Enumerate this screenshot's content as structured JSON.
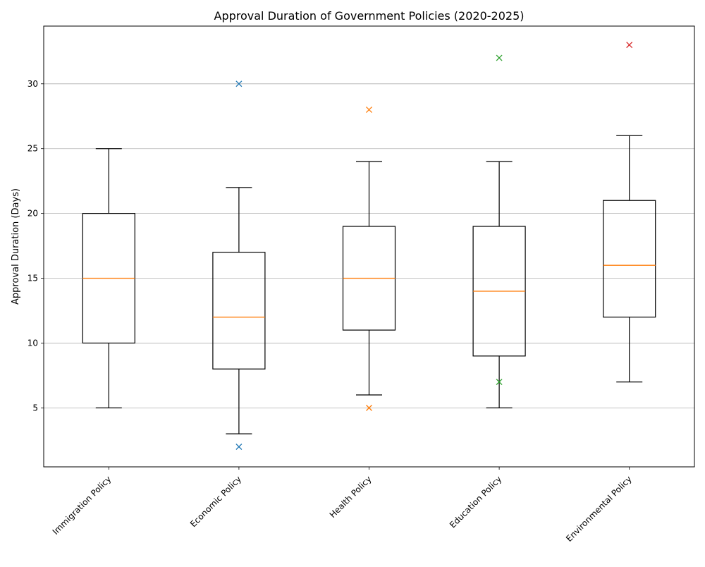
{
  "chart_data": {
    "type": "box",
    "title": "Approval Duration of Government Policies (2020-2025)",
    "xlabel": "",
    "ylabel": "Approval Duration (Days)",
    "ylim": [
      0.45,
      34.45
    ],
    "yticks": [
      5,
      10,
      15,
      20,
      25,
      30
    ],
    "grid": "y",
    "categories": [
      "Immigration Policy",
      "Economic Policy",
      "Health Policy",
      "Education Policy",
      "Environmental Policy"
    ],
    "boxes": [
      {
        "category": "Immigration Policy",
        "whisker_low": 5,
        "q1": 10,
        "median": 15,
        "q3": 20,
        "whisker_high": 25,
        "outliers": []
      },
      {
        "category": "Economic Policy",
        "whisker_low": 3,
        "q1": 8,
        "median": 12,
        "q3": 17,
        "whisker_high": 22,
        "outliers": [
          30,
          2
        ]
      },
      {
        "category": "Health Policy",
        "whisker_low": 6,
        "q1": 11,
        "median": 15,
        "q3": 19,
        "whisker_high": 24,
        "outliers": [
          28,
          5
        ]
      },
      {
        "category": "Education Policy",
        "whisker_low": 5,
        "q1": 9,
        "median": 14,
        "q3": 19,
        "whisker_high": 24,
        "outliers": [
          32,
          7
        ]
      },
      {
        "category": "Environmental Policy",
        "whisker_low": 7,
        "q1": 12,
        "median": 16,
        "q3": 21,
        "whisker_high": 26,
        "outliers": [
          33
        ]
      }
    ],
    "colors": {
      "box": "#000000",
      "median": "#ff7f0e",
      "grid": "#b0b0b0",
      "outliers": [
        "#1f77b4",
        "#1f77b4",
        "#ff7f0e",
        "#2ca02c",
        "#d62728"
      ]
    }
  }
}
